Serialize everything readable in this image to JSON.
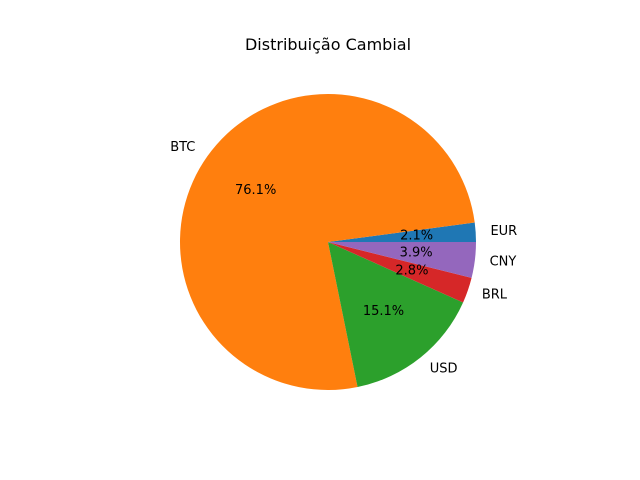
{
  "chart_data": {
    "type": "pie",
    "title": "Distribuição Cambial",
    "categories": [
      "EUR",
      "BTC",
      "USD",
      "BRL",
      "CNY"
    ],
    "values": [
      2.1,
      76.1,
      15.1,
      2.8,
      3.9
    ],
    "percent_labels": [
      "2.1%",
      "76.1%",
      "15.1%",
      "2.8%",
      "3.9%"
    ],
    "colors": [
      "#1f77b4",
      "#ff7f0e",
      "#2ca02c",
      "#d62728",
      "#9467bd"
    ],
    "start_angle_deg": 0,
    "direction": "counterclockwise",
    "legend": "none"
  }
}
